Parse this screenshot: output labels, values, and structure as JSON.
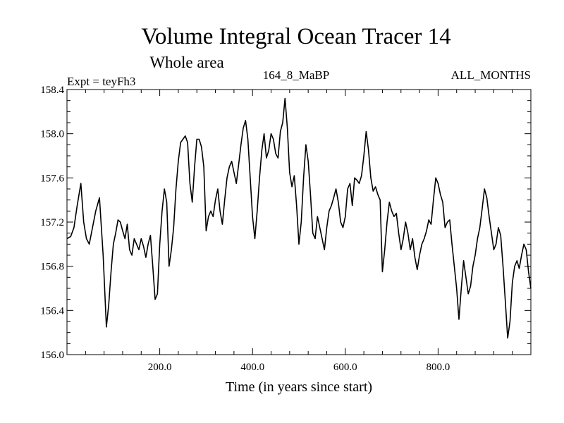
{
  "chart_data": {
    "type": "line",
    "title": "Volume Integral Ocean Tracer 14",
    "subtitle": "Whole area",
    "left_label": "Expt = teyFh3",
    "center_label": "164_8_MaBP",
    "right_label": "ALL_MONTHS",
    "xlabel": "Time (in years since start)",
    "ylabel": "",
    "xlim": [
      0,
      1000
    ],
    "ylim": [
      156.0,
      158.4
    ],
    "x_ticks": [
      200,
      400,
      600,
      800
    ],
    "x_tick_labels": [
      "200.0",
      "400.0",
      "600.0",
      "800.0"
    ],
    "y_ticks": [
      156.0,
      156.4,
      156.8,
      157.2,
      157.6,
      158.0,
      158.4
    ],
    "y_tick_labels": [
      "156.0",
      "156.4",
      "156.8",
      "157.2",
      "157.6",
      "158.0",
      "158.4"
    ],
    "line_color": "#000000",
    "series": [
      {
        "name": "Tracer 14",
        "x": [
          0,
          8,
          15,
          22,
          30,
          36,
          42,
          48,
          55,
          62,
          70,
          78,
          85,
          90,
          95,
          100,
          105,
          110,
          115,
          120,
          125,
          130,
          135,
          140,
          145,
          150,
          155,
          160,
          165,
          170,
          175,
          180,
          185,
          190,
          195,
          200,
          205,
          210,
          215,
          220,
          225,
          230,
          235,
          240,
          245,
          250,
          255,
          260,
          265,
          270,
          275,
          280,
          285,
          290,
          295,
          300,
          305,
          310,
          315,
          320,
          325,
          330,
          335,
          340,
          345,
          350,
          355,
          360,
          365,
          370,
          375,
          380,
          385,
          390,
          395,
          400,
          405,
          410,
          415,
          420,
          425,
          430,
          435,
          440,
          445,
          450,
          455,
          460,
          465,
          470,
          475,
          480,
          485,
          490,
          495,
          500,
          505,
          510,
          515,
          520,
          525,
          530,
          535,
          540,
          545,
          550,
          555,
          560,
          565,
          570,
          575,
          580,
          585,
          590,
          595,
          600,
          605,
          610,
          615,
          620,
          625,
          630,
          635,
          640,
          645,
          650,
          655,
          660,
          665,
          670,
          675,
          680,
          685,
          690,
          695,
          700,
          705,
          710,
          715,
          720,
          725,
          730,
          735,
          740,
          745,
          750,
          755,
          760,
          765,
          770,
          775,
          780,
          785,
          790,
          795,
          800,
          805,
          810,
          815,
          820,
          825,
          830,
          835,
          840,
          845,
          850,
          855,
          860,
          865,
          870,
          875,
          880,
          885,
          890,
          895,
          900,
          905,
          910,
          915,
          920,
          925,
          930,
          935,
          940,
          945,
          950,
          955,
          960,
          965,
          970,
          975,
          980,
          985,
          990,
          995,
          1000
        ],
        "values": [
          157.05,
          157.07,
          157.15,
          157.35,
          157.55,
          157.2,
          157.05,
          157.0,
          157.15,
          157.3,
          157.42,
          156.9,
          156.25,
          156.45,
          156.75,
          157.0,
          157.1,
          157.22,
          157.2,
          157.12,
          157.05,
          157.18,
          156.95,
          156.9,
          157.05,
          157.0,
          156.95,
          157.05,
          156.98,
          156.88,
          157.0,
          157.08,
          156.8,
          156.5,
          156.55,
          157.0,
          157.3,
          157.5,
          157.38,
          156.8,
          156.95,
          157.15,
          157.5,
          157.75,
          157.92,
          157.95,
          157.98,
          157.92,
          157.55,
          157.38,
          157.7,
          157.95,
          157.95,
          157.88,
          157.7,
          157.12,
          157.25,
          157.3,
          157.25,
          157.4,
          157.5,
          157.3,
          157.18,
          157.4,
          157.6,
          157.7,
          157.75,
          157.65,
          157.55,
          157.72,
          157.9,
          158.05,
          158.12,
          157.95,
          157.6,
          157.25,
          157.05,
          157.3,
          157.6,
          157.85,
          158.0,
          157.78,
          157.85,
          158.0,
          157.95,
          157.82,
          157.78,
          158.02,
          158.1,
          158.32,
          158.05,
          157.65,
          157.52,
          157.62,
          157.35,
          157.0,
          157.2,
          157.6,
          157.9,
          157.75,
          157.45,
          157.1,
          157.05,
          157.25,
          157.15,
          157.05,
          156.95,
          157.15,
          157.3,
          157.35,
          157.42,
          157.5,
          157.38,
          157.2,
          157.15,
          157.25,
          157.5,
          157.55,
          157.35,
          157.6,
          157.58,
          157.55,
          157.62,
          157.8,
          158.02,
          157.85,
          157.6,
          157.48,
          157.52,
          157.45,
          157.4,
          156.75,
          156.95,
          157.2,
          157.38,
          157.3,
          157.25,
          157.28,
          157.1,
          156.95,
          157.05,
          157.2,
          157.1,
          156.95,
          157.05,
          156.88,
          156.77,
          156.9,
          157.0,
          157.05,
          157.12,
          157.22,
          157.18,
          157.4,
          157.6,
          157.55,
          157.45,
          157.38,
          157.15,
          157.2,
          157.22,
          157.0,
          156.8,
          156.6,
          156.32,
          156.6,
          156.85,
          156.7,
          156.55,
          156.62,
          156.8,
          156.9,
          157.05,
          157.15,
          157.32,
          157.5,
          157.42,
          157.25,
          157.1,
          156.95,
          157.0,
          157.15,
          157.08,
          156.8,
          156.48,
          156.15,
          156.3,
          156.65,
          156.8,
          156.85,
          156.78,
          156.9,
          157.0,
          156.95,
          156.75,
          156.6
        ]
      }
    ]
  }
}
